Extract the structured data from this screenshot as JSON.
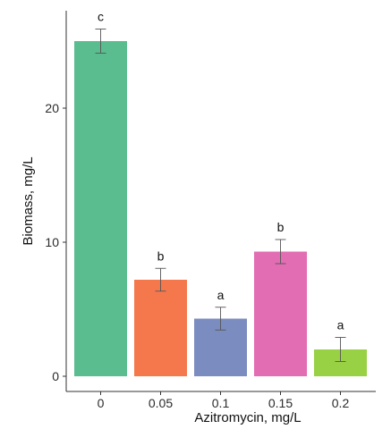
{
  "chart_data": {
    "type": "bar",
    "title": "",
    "xlabel": "Azitromycin, mg/L",
    "ylabel": "Biomass, mg/L",
    "ylim": [
      0,
      27.5
    ],
    "yticks": [
      0,
      10,
      20
    ],
    "grid": false,
    "legend": "none",
    "categories": [
      "0",
      "0.05",
      "0.1",
      "0.15",
      "0.2"
    ],
    "values": [
      25.0,
      7.2,
      4.3,
      9.3,
      2.0
    ],
    "errors": [
      0.9,
      0.85,
      0.85,
      0.9,
      0.9
    ],
    "significance_labels": [
      "c",
      "b",
      "a",
      "b",
      "a"
    ],
    "colors": [
      "#59bd8f",
      "#f5784d",
      "#7b8cc0",
      "#e26db3",
      "#99d145"
    ],
    "axis_color": "#333333",
    "errorbar_color": "#555555"
  }
}
